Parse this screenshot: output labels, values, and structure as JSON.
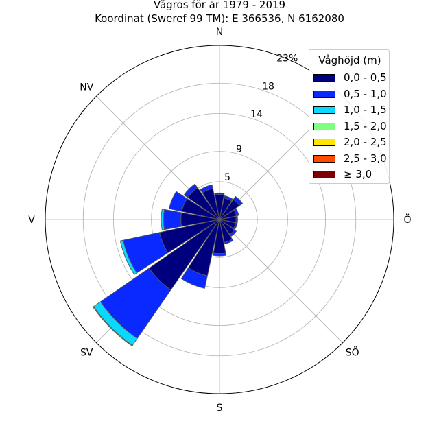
{
  "title_line1": "Vågros för år 1979 - 2019",
  "title_line2": "Koordinat (Sweref 99 TM): E 366536, N 6162080",
  "chart_data": {
    "type": "windrose",
    "title": "Vågros för år 1979 - 2019",
    "subtitle": "Koordinat (Sweref 99 TM): E 366536, N 6162080",
    "direction_labels": [
      "N",
      "Ö",
      "S",
      "V",
      "NV",
      "SÖ",
      "SV"
    ],
    "direction_label_angles": [
      0,
      90,
      180,
      270,
      315,
      135,
      225
    ],
    "n_sectors": 16,
    "radial_ticks": [
      5,
      9,
      14,
      18
    ],
    "radial_max": 23,
    "radial_max_label": "23%",
    "legend_title": "Våghöjd (m)",
    "legend_position": "upper-right",
    "grid": true,
    "bins": [
      {
        "label": "0,0 - 0,5",
        "color": "#00007f"
      },
      {
        "label": "0,5 - 1,0",
        "color": "#0a29ff"
      },
      {
        "label": "1,0 - 1,5",
        "color": "#0ad9ff"
      },
      {
        "label": "1,5 - 2,0",
        "color": "#7fff7f"
      },
      {
        "label": "2,0 - 2,5",
        "color": "#ffe500"
      },
      {
        "label": "2,5 - 3,0",
        "color": "#ff4a00"
      },
      {
        "label": "≥ 3,0",
        "color": "#7f0000"
      }
    ],
    "sectors": [
      {
        "direction": 0,
        "values": [
          3.3,
          0.2,
          0,
          0,
          0,
          0,
          0
        ]
      },
      {
        "direction": 22.5,
        "values": [
          2.9,
          0.3,
          0,
          0,
          0,
          0,
          0
        ]
      },
      {
        "direction": 45,
        "values": [
          3.2,
          0.5,
          0,
          0,
          0,
          0,
          0
        ]
      },
      {
        "direction": 67.5,
        "values": [
          2.3,
          0.3,
          0,
          0,
          0,
          0,
          0
        ]
      },
      {
        "direction": 90,
        "values": [
          2.2,
          0.2,
          0,
          0,
          0,
          0,
          0
        ]
      },
      {
        "direction": 112.5,
        "values": [
          2.2,
          0.2,
          0,
          0,
          0,
          0,
          0
        ]
      },
      {
        "direction": 135,
        "values": [
          2.4,
          0.3,
          0,
          0,
          0,
          0,
          0
        ]
      },
      {
        "direction": 157.5,
        "values": [
          3.1,
          0.2,
          0,
          0,
          0,
          0,
          0
        ]
      },
      {
        "direction": 180,
        "values": [
          4.5,
          0.3,
          0,
          0,
          0,
          0,
          0
        ]
      },
      {
        "direction": 202.5,
        "values": [
          7.6,
          1.7,
          0,
          0,
          0,
          0,
          0
        ]
      },
      {
        "direction": 225,
        "values": [
          11.3,
          7.8,
          1.1,
          0.1,
          0,
          0,
          0
        ]
      },
      {
        "direction": 247.5,
        "values": [
          8.1,
          4.9,
          0.4,
          0,
          0,
          0,
          0
        ]
      },
      {
        "direction": 270,
        "values": [
          5.1,
          2.3,
          0.3,
          0,
          0,
          0,
          0
        ]
      },
      {
        "direction": 292.5,
        "values": [
          5.1,
          1.7,
          0,
          0,
          0,
          0,
          0
        ]
      },
      {
        "direction": 315,
        "values": [
          5.1,
          0.6,
          0,
          0,
          0,
          0,
          0
        ]
      },
      {
        "direction": 337.5,
        "values": [
          4.2,
          0.5,
          0,
          0,
          0,
          0,
          0
        ]
      }
    ]
  }
}
